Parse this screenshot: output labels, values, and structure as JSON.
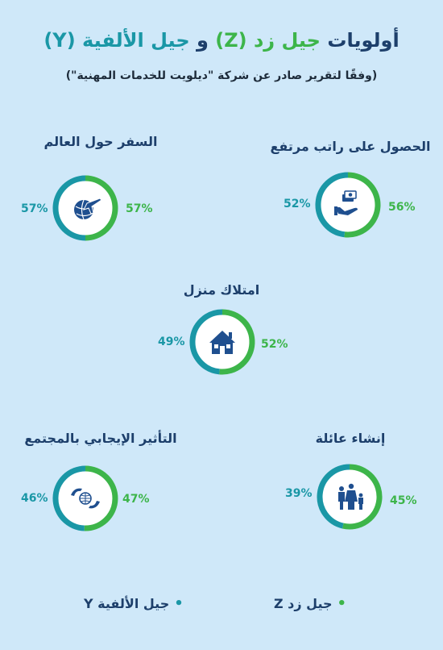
{
  "title": {
    "part1": "أولويات",
    "genz": "جيل زد (Z)",
    "and": "و",
    "millennials": "جيل الألفية  (Y)"
  },
  "subtitle": "(وفقًا لتقرير صادر عن شركة \"ديلويت للخدمات المهنية\")",
  "colors": {
    "genz": "#3db54a",
    "millennials": "#1a97a6",
    "icon": "#1f4f8f"
  },
  "chart_data": {
    "type": "donut",
    "series": [
      {
        "name": "جيل زد Z",
        "color": "#3db54a"
      },
      {
        "name": "جيل الألفية Y",
        "color": "#1a97a6"
      }
    ],
    "categories": [
      "الحصول على راتب مرتفع",
      "السفر حول العالم",
      "امتلاك منزل",
      "إنشاء عائلة",
      "التأثير الإيجابي بالمجتمع"
    ],
    "items": [
      {
        "label": "الحصول على راتب مرتفع",
        "icon": "salary-icon",
        "genz": 56,
        "millennials": 52,
        "genz_text": "56%",
        "millennials_text": "52%"
      },
      {
        "label": "السفر حول العالم",
        "icon": "travel-icon",
        "genz": 57,
        "millennials": 57,
        "genz_text": "57%",
        "millennials_text": "57%"
      },
      {
        "label": "امتلاك منزل",
        "icon": "house-icon",
        "genz": 52,
        "millennials": 49,
        "genz_text": "52%",
        "millennials_text": "49%"
      },
      {
        "label": "إنشاء عائلة",
        "icon": "family-icon",
        "genz": 45,
        "millennials": 39,
        "genz_text": "45%",
        "millennials_text": "39%"
      },
      {
        "label": "التأثير الإيجابي بالمجتمع",
        "icon": "community-icon",
        "genz": 47,
        "millennials": 46,
        "genz_text": "47%",
        "millennials_text": "46%"
      }
    ]
  },
  "legend": {
    "genz": "جيل زد Z",
    "millennials": "جيل الألفية Y"
  }
}
